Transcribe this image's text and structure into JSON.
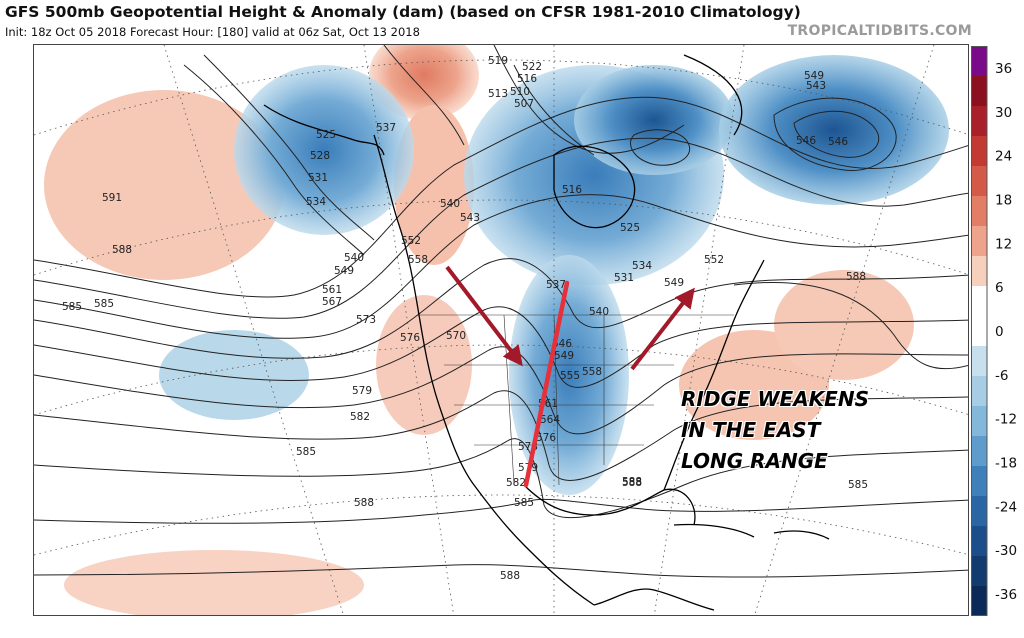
{
  "header": {
    "title": "GFS 500mb Geopotential Height & Anomaly (dam) (based on CFSR 1981-2010 Climatology)",
    "subtitle": "Init: 18z Oct 05 2018   Forecast Hour: [180]   valid at 06z Sat, Oct 13 2018",
    "brand": "TROPICALTIDBITS.COM"
  },
  "annotation": {
    "lines": [
      "RIDGE WEAKENS",
      "IN THE EAST",
      "LONG RANGE"
    ]
  },
  "colorbar": {
    "labels": [
      "36",
      "30",
      "24",
      "18",
      "12",
      "6",
      "0",
      "-6",
      "-12",
      "-18",
      "-24",
      "-30",
      "-36"
    ],
    "colors": [
      "#7a0a8a",
      "#8b1020",
      "#a8202a",
      "#c23a32",
      "#d45a48",
      "#e27e66",
      "#eea48c",
      "#f7cfbd",
      "#ffffff",
      "#ffffff",
      "#c8e0ee",
      "#a7cde4",
      "#84b8da",
      "#5f9ccb",
      "#3f80bb",
      "#2a66a4",
      "#1c4f8a",
      "#123b70",
      "#0c2a57"
    ]
  },
  "contour_labels": [
    "591",
    "588",
    "585",
    "585",
    "525",
    "528",
    "531",
    "534",
    "540",
    "549",
    "561",
    "567",
    "573",
    "576",
    "579",
    "582",
    "585",
    "588",
    "537",
    "540",
    "543",
    "552",
    "558",
    "570",
    "519",
    "522",
    "516",
    "513",
    "510",
    "507",
    "516",
    "546",
    "549",
    "543",
    "546",
    "525",
    "534",
    "531",
    "537",
    "540",
    "546",
    "549",
    "555",
    "558",
    "561",
    "564",
    "573",
    "576",
    "579",
    "582",
    "585",
    "588",
    "588",
    "552",
    "549",
    "588",
    "585",
    "588"
  ],
  "colors": {
    "ridge_red": "#f2b9a2",
    "trough_blue": "#3f80bb",
    "arrow_red": "#a3192a",
    "line_red": "#e8303a"
  }
}
